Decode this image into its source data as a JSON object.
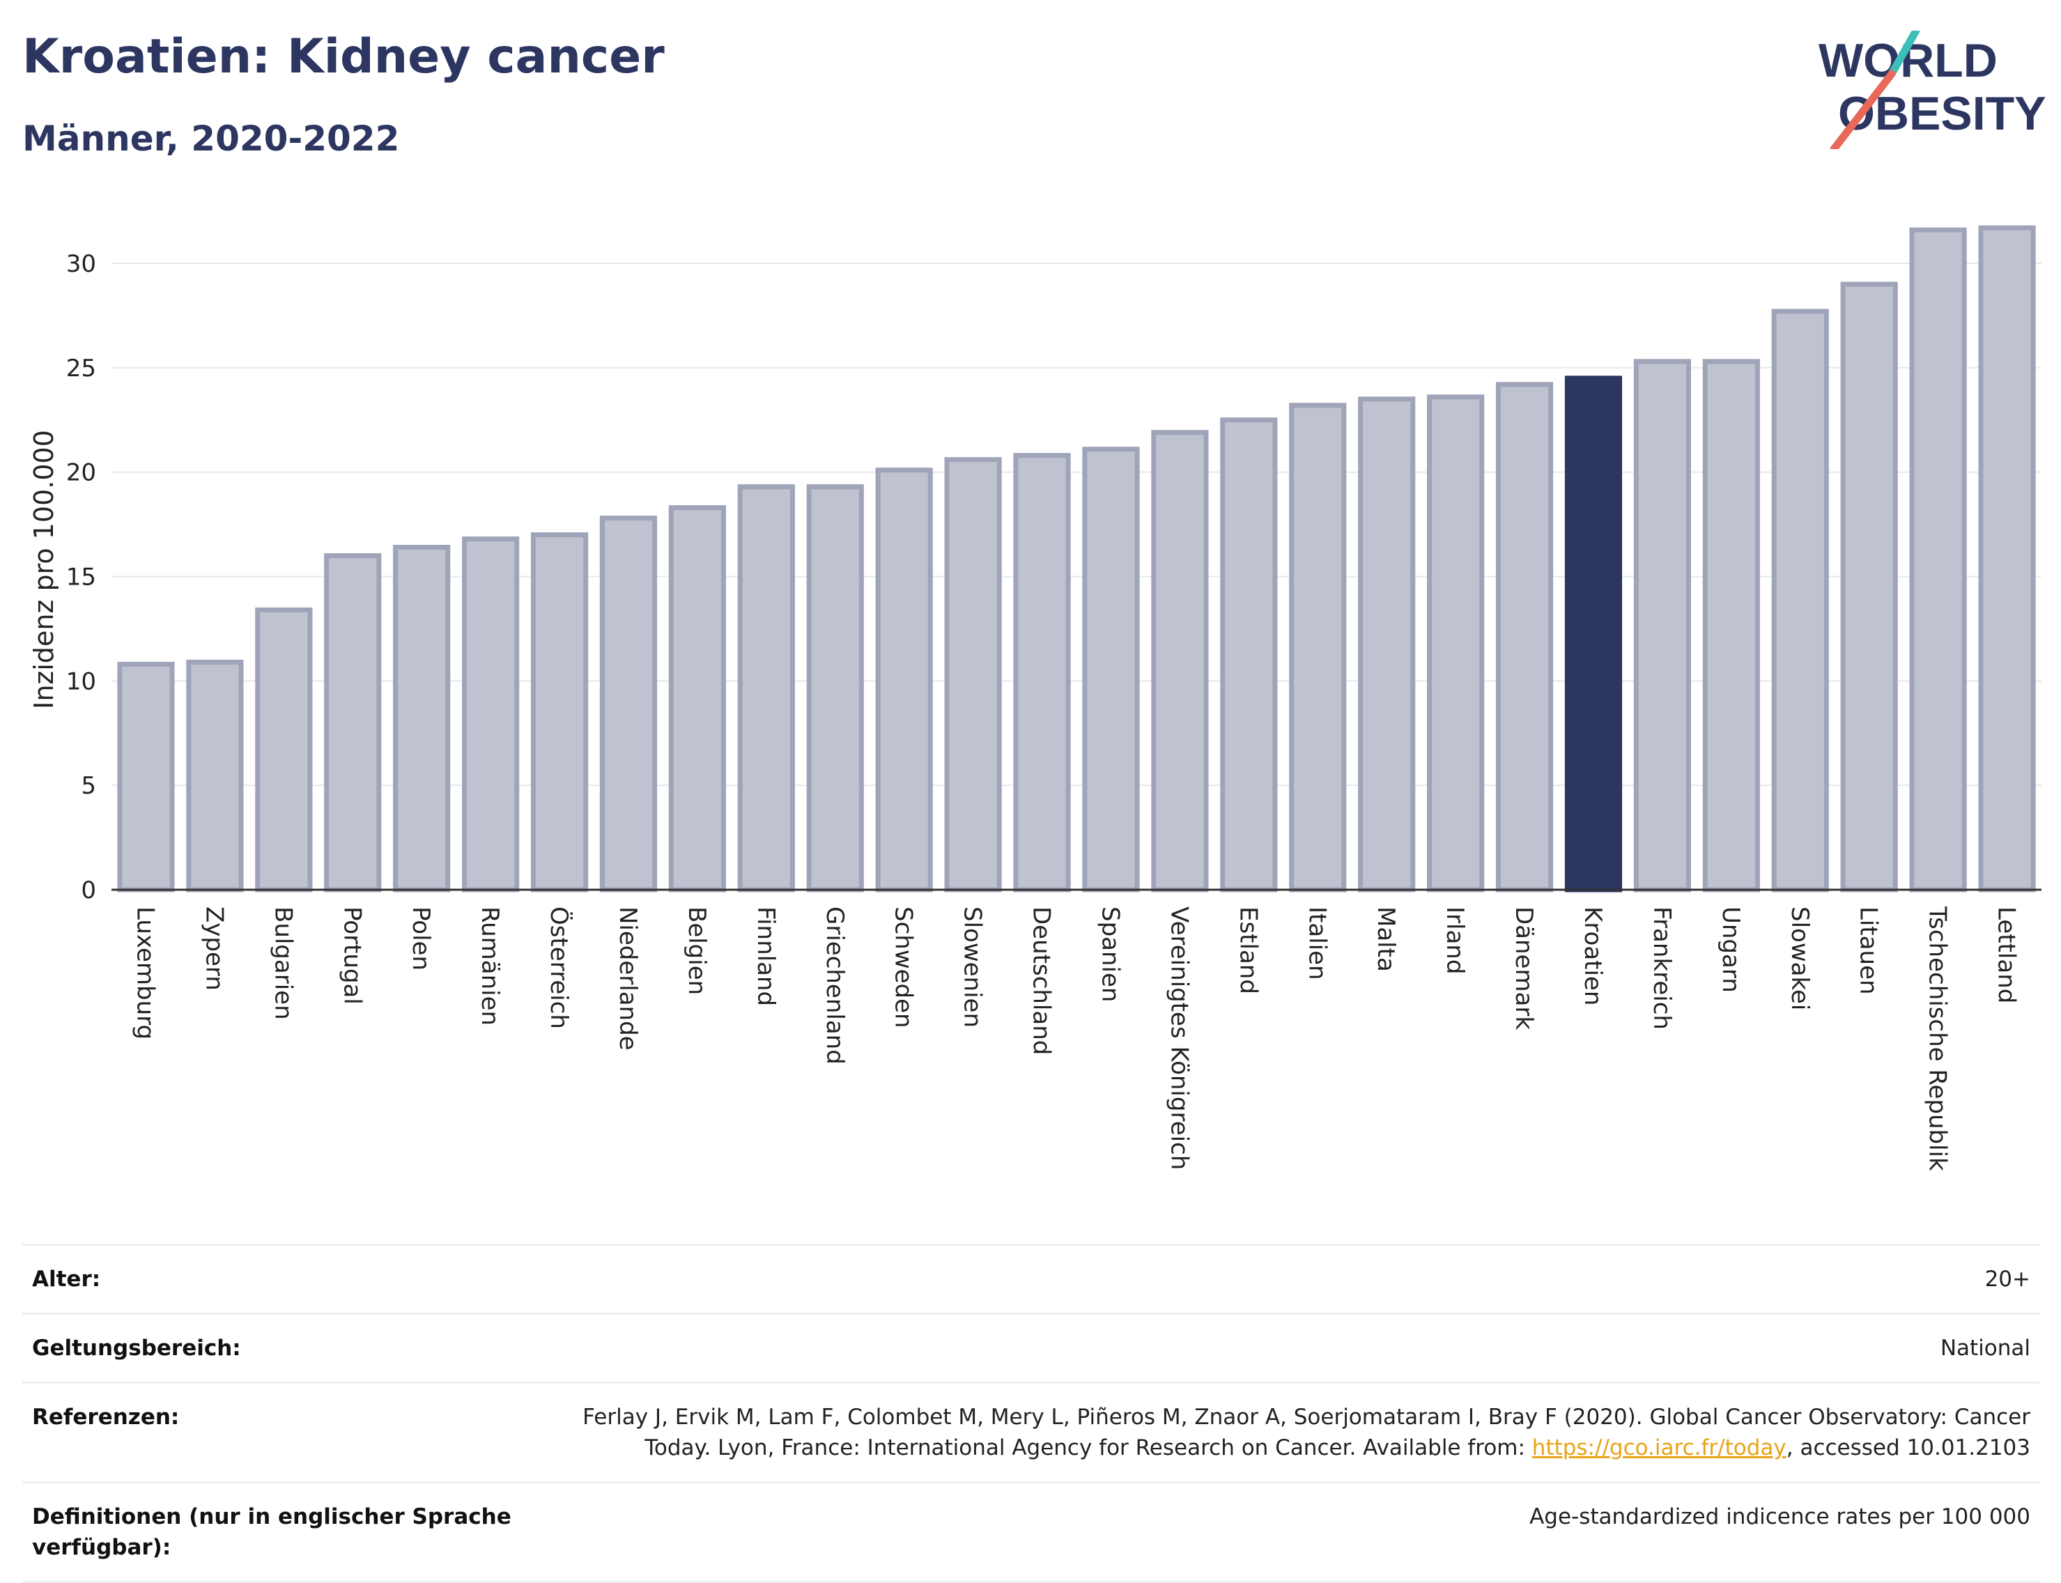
{
  "header": {
    "title": "Kroatien: Kidney cancer",
    "subtitle": "Männer, 2020-2022",
    "logo_line1": "WORLD",
    "logo_line2": "OBESITY"
  },
  "colors": {
    "bar": "#bfc2cf",
    "bar_border": "#9fa4b8",
    "highlight": "#2c3660",
    "title": "#2c3660",
    "grid": "#e6e8ee",
    "link": "#e8a317"
  },
  "chart_data": {
    "type": "bar",
    "title": "Kroatien: Kidney cancer",
    "subtitle": "Männer, 2020-2022",
    "xlabel": "",
    "ylabel": "Inzidenz pro 100.000",
    "ylim": [
      0,
      32
    ],
    "yticks": [
      0,
      5,
      10,
      15,
      20,
      25,
      30
    ],
    "grid": true,
    "highlight": "Kroatien",
    "categories": [
      "Luxemburg",
      "Zypern",
      "Bulgarien",
      "Portugal",
      "Polen",
      "Rumänien",
      "Österreich",
      "Niederlande",
      "Belgien",
      "Finnland",
      "Griechenland",
      "Schweden",
      "Slowenien",
      "Deutschland",
      "Spanien",
      "Vereinigtes Königreich",
      "Estland",
      "Italien",
      "Malta",
      "Irland",
      "Dänemark",
      "Kroatien",
      "Frankreich",
      "Ungarn",
      "Slowakei",
      "Litauen",
      "Tschechische Republik",
      "Lettland"
    ],
    "values": [
      10.8,
      10.9,
      13.4,
      16.0,
      16.4,
      16.8,
      17.0,
      17.8,
      18.3,
      19.3,
      19.3,
      20.1,
      20.6,
      20.8,
      21.1,
      21.9,
      22.5,
      23.2,
      23.5,
      23.6,
      24.2,
      24.5,
      25.3,
      25.3,
      27.7,
      29.0,
      31.6,
      31.7
    ]
  },
  "meta": {
    "age_label": "Alter:",
    "age_value": "20+",
    "scope_label": "Geltungsbereich:",
    "scope_value": "National",
    "refs_label": "Referenzen:",
    "refs_text_1": "Ferlay J, Ervik M, Lam F, Colombet M, Mery L, Piñeros M, Znaor A, Soerjomataram I, Bray F (2020). Global Cancer Observatory: Cancer Today. Lyon, France: International Agency for Research on Cancer. Available from: ",
    "refs_link": "https://gco.iarc.fr/today",
    "refs_text_2": ", accessed 10.01.2103",
    "defs_label": "Definitionen (nur in englischer Sprache verfügbar):",
    "defs_value": "Age-standardized indicence rates per 100 000"
  }
}
